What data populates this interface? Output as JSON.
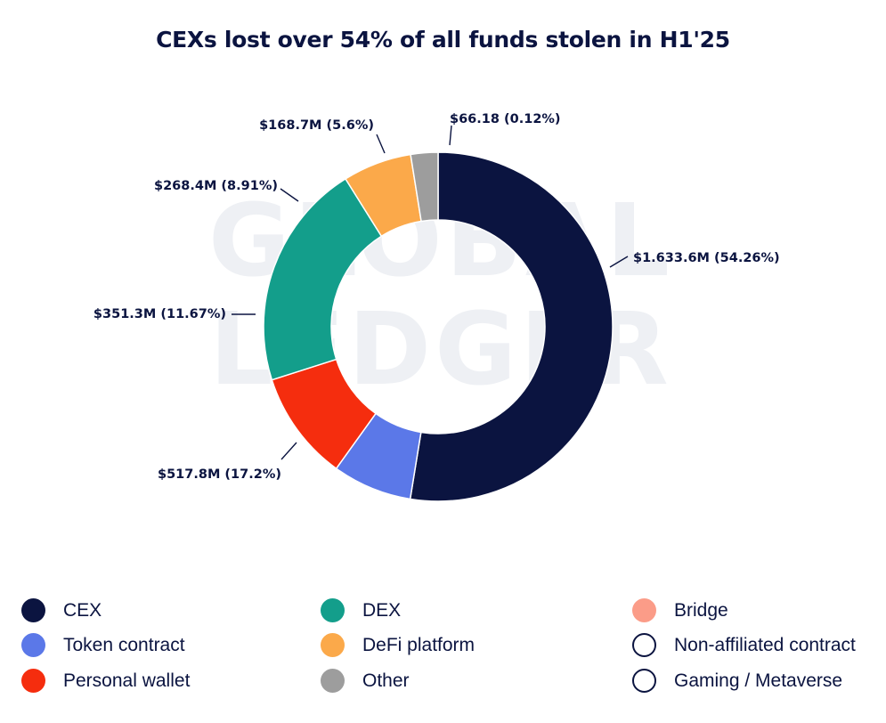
{
  "watermark": {
    "line1": "GLOBAL",
    "line2": "LEDGER"
  },
  "chart_data": {
    "type": "pie",
    "donut": true,
    "title": "CEXs lost over 54% of all funds stolen in H1'25",
    "slices": [
      {
        "name": "CEX",
        "value_usd_m": 1633.6,
        "percent": 54.26,
        "label": "$1.633.6M (54.26%)",
        "color": "#0b1440"
      },
      {
        "name": "Token contract",
        "value_usd_m": 517.8,
        "percent": 17.2,
        "label": "$517.8M (17.2%)",
        "color": "#5b78e8"
      },
      {
        "name": "Personal wallet",
        "value_usd_m": 351.3,
        "percent": 11.67,
        "label": "$351.3M (11.67%)",
        "color": "#f52d0e"
      },
      {
        "name": "DEX",
        "value_usd_m": 268.4,
        "percent": 8.91,
        "label": "$268.4M (8.91%)",
        "color": "#139e8b"
      },
      {
        "name": "DeFi platform",
        "value_usd_m": 168.7,
        "percent": 5.6,
        "label": "$168.7M (5.6%)",
        "color": "#fba94a"
      },
      {
        "name": "Other",
        "value_usd": 66.18,
        "percent": 0.12,
        "label": "$66.18 (0.12%)",
        "color": "#9d9d9d"
      }
    ],
    "legend": [
      {
        "name": "CEX",
        "color": "#0b1440",
        "outline": false
      },
      {
        "name": "Token contract",
        "color": "#5b78e8",
        "outline": false
      },
      {
        "name": "Personal wallet",
        "color": "#f52d0e",
        "outline": false
      },
      {
        "name": "DEX",
        "color": "#139e8b",
        "outline": false
      },
      {
        "name": "DeFi platform",
        "color": "#fba94a",
        "outline": false
      },
      {
        "name": "Other",
        "color": "#9d9d9d",
        "outline": false
      },
      {
        "name": "Bridge",
        "color": "#fb9c88",
        "outline": false
      },
      {
        "name": "Non-affiliated contract",
        "color": "#ffffff",
        "outline": true
      },
      {
        "name": "Gaming / Metaverse",
        "color": "#ffffff",
        "outline": true
      }
    ],
    "legend_placement": "bottom"
  }
}
